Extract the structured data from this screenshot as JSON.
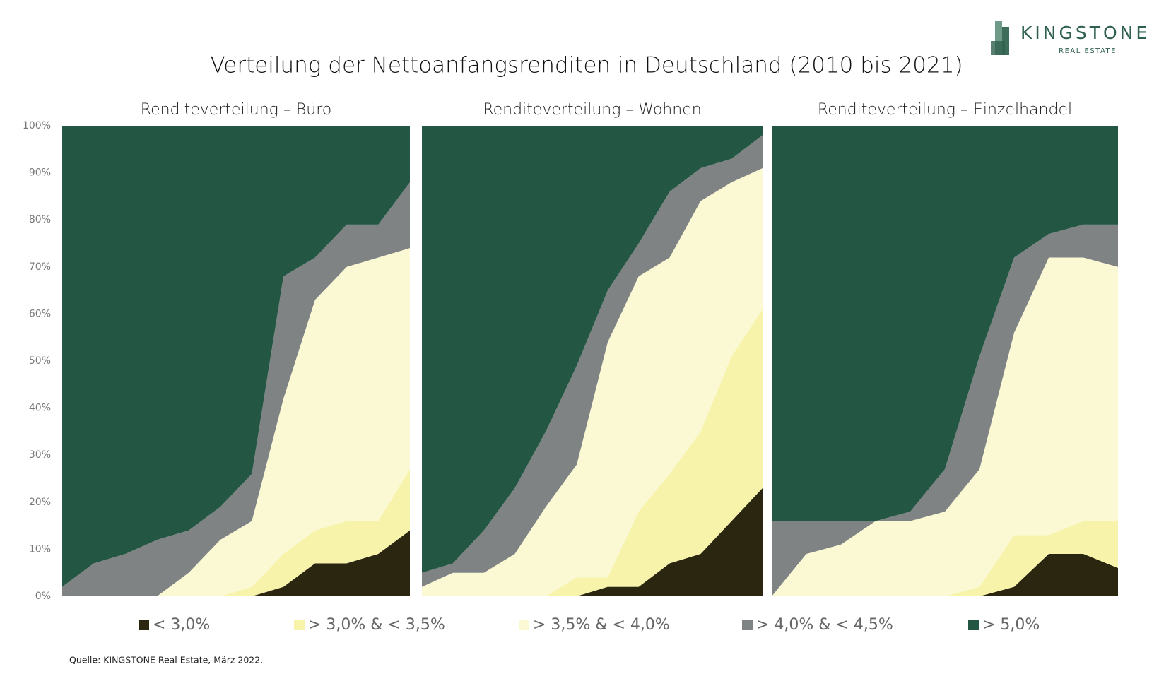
{
  "title": "Verteilung der Nettoanfangsrenditen in Deutschland (2010 bis 2021)",
  "logo": {
    "name": "KINGSTONE",
    "tagline": "REAL ESTATE"
  },
  "source": "Quelle: KINGSTONE Real Estate, März 2022.",
  "chart_data": [
    {
      "type": "stacked-area",
      "title": "Renditeverteilung – Büro",
      "categories": [
        null,
        null,
        null,
        null,
        null,
        null,
        null,
        null,
        null,
        null,
        null,
        null
      ],
      "ylim": [
        0,
        100
      ],
      "yticks": [
        {
          "value": 0,
          "label": "0%"
        },
        {
          "value": 10,
          "label": "10%"
        },
        {
          "value": 20,
          "label": "20%"
        },
        {
          "value": 30,
          "label": "30%"
        },
        {
          "value": 40,
          "label": "40%"
        },
        {
          "value": 50,
          "label": "50%"
        },
        {
          "value": 60,
          "label": "60%"
        },
        {
          "value": 70,
          "label": "70%"
        },
        {
          "value": 80,
          "label": "80%"
        },
        {
          "value": 90,
          "label": "90%"
        },
        {
          "value": 100,
          "label": "100%"
        }
      ],
      "series": [
        {
          "name": "< 3,0%",
          "color": "#2b2610",
          "values": [
            0,
            0,
            0,
            0,
            0,
            0,
            0,
            2,
            7,
            7,
            9,
            14
          ]
        },
        {
          "name": "> 3,0% & < 3,5%",
          "color": "#f8f3aa",
          "values": [
            0,
            0,
            0,
            0,
            0,
            0,
            2,
            7,
            7,
            9,
            7,
            13
          ]
        },
        {
          "name": "> 3,5% & < 4,0%",
          "color": "#fbf9d4",
          "values": [
            0,
            0,
            0,
            0,
            5,
            12,
            14,
            33,
            49,
            54,
            56,
            47
          ]
        },
        {
          "name": "> 4,0% & < 4,5%",
          "color": "#7f8383",
          "values": [
            2,
            7,
            9,
            12,
            9,
            7,
            10,
            26,
            9,
            9,
            7,
            14
          ]
        },
        {
          "name": "> 5,0%",
          "color": "#235744",
          "values": [
            98,
            93,
            91,
            88,
            86,
            81,
            74,
            32,
            28,
            21,
            21,
            12
          ]
        }
      ]
    },
    {
      "type": "stacked-area",
      "title": "Renditeverteilung – Wohnen",
      "categories": [
        null,
        null,
        null,
        null,
        null,
        null,
        null,
        null,
        null,
        null,
        null,
        null
      ],
      "ylim": [
        0,
        100
      ],
      "series": [
        {
          "values": [
            0,
            0,
            0,
            0,
            0,
            0,
            2,
            2,
            7,
            9,
            16,
            23
          ]
        },
        {
          "values": [
            0,
            0,
            0,
            0,
            0,
            4,
            2,
            16,
            19,
            26,
            35,
            38
          ]
        },
        {
          "values": [
            2,
            5,
            5,
            9,
            19,
            24,
            50,
            50,
            46,
            49,
            37,
            30
          ]
        },
        {
          "values": [
            3,
            2,
            9,
            14,
            16,
            21,
            11,
            7,
            14,
            7,
            5,
            7
          ]
        },
        {
          "values": [
            95,
            93,
            86,
            77,
            65,
            51,
            35,
            25,
            14,
            9,
            7,
            2
          ]
        }
      ]
    },
    {
      "type": "stacked-area",
      "title": "Renditeverteilung – Einzelhandel",
      "categories": [
        null,
        null,
        null,
        null,
        null,
        null,
        null,
        null,
        null,
        null,
        null
      ],
      "ylim": [
        0,
        100
      ],
      "series": [
        {
          "values": [
            0,
            0,
            0,
            0,
            0,
            0,
            0,
            2,
            9,
            9,
            6
          ]
        },
        {
          "values": [
            0,
            0,
            0,
            0,
            0,
            0,
            2,
            11,
            4,
            7,
            10
          ]
        },
        {
          "values": [
            0,
            9,
            11,
            16,
            16,
            18,
            25,
            43,
            59,
            56,
            54
          ]
        },
        {
          "values": [
            16,
            7,
            5,
            0,
            2,
            9,
            24,
            16,
            5,
            7,
            9
          ]
        },
        {
          "values": [
            84,
            84,
            84,
            84,
            82,
            73,
            49,
            28,
            23,
            21,
            21
          ]
        }
      ]
    }
  ]
}
